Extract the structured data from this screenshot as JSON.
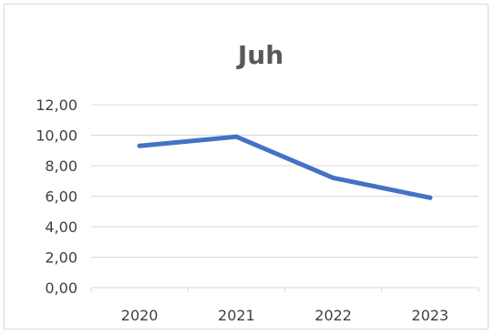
{
  "chart_data": {
    "type": "line",
    "title": "Juh",
    "categories": [
      "2020",
      "2021",
      "2022",
      "2023"
    ],
    "series": [
      {
        "values": [
          9.3,
          9.9,
          7.2,
          5.9
        ]
      }
    ],
    "y_ticks": [
      "0,00",
      "2,00",
      "4,00",
      "6,00",
      "8,00",
      "10,00",
      "12,00"
    ],
    "ylim": [
      0,
      12
    ],
    "grid": true,
    "legend": "none",
    "colors": {
      "series": "#4472c4",
      "grid": "#d9d9d9",
      "text": "#404040",
      "title": "#595959"
    }
  }
}
